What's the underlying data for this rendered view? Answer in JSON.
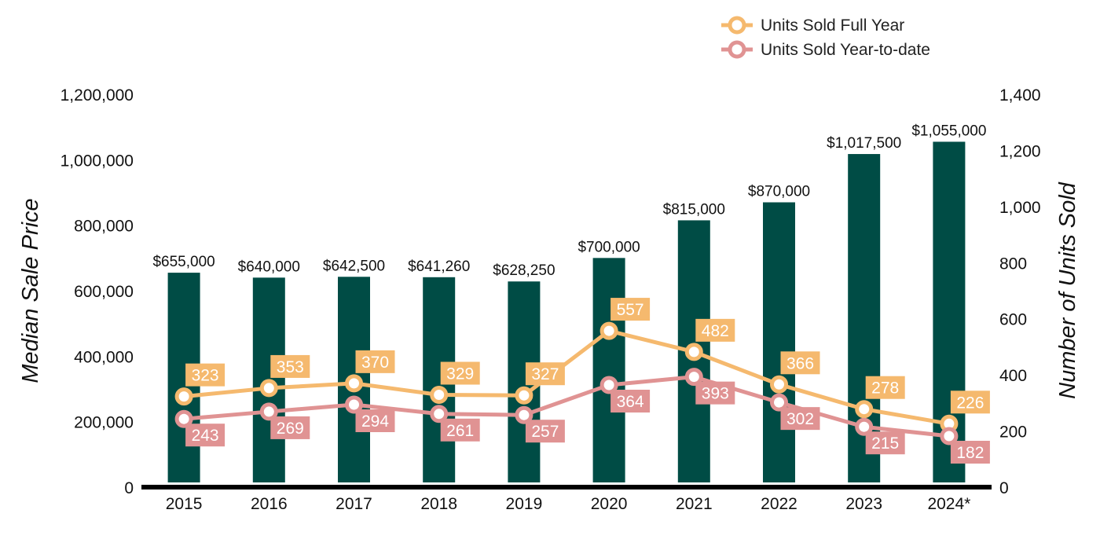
{
  "chart_data": {
    "type": "bar",
    "categories": [
      "2015",
      "2016",
      "2017",
      "2018",
      "2019",
      "2020",
      "2021",
      "2022",
      "2023",
      "2024*"
    ],
    "bar_series": {
      "values": [
        655000,
        640000,
        642500,
        641260,
        628250,
        700000,
        815000,
        870000,
        1017500,
        1055000
      ],
      "labels": [
        "$655,000",
        "$640,000",
        "$642,500",
        "$641,260",
        "$628,250",
        "$700,000",
        "$815,000",
        "$870,000",
        "$1,017,500",
        "$1,055,000"
      ],
      "color": "#004c45"
    },
    "line_series": [
      {
        "name": "Units Sold Full Year",
        "values": [
          323,
          353,
          370,
          329,
          327,
          557,
          482,
          366,
          278,
          226
        ],
        "color": "#f5b96e"
      },
      {
        "name": "Units Sold Year-to-date",
        "values": [
          243,
          269,
          294,
          261,
          257,
          364,
          393,
          302,
          215,
          182
        ],
        "color": "#e09393"
      }
    ],
    "y_left": {
      "label": "Median Sale Price",
      "range": [
        0,
        1200000
      ],
      "ticks": [
        "0",
        "200,000",
        "400,000",
        "600,000",
        "800,000",
        "1,000,000",
        "1,200,000"
      ]
    },
    "y_right": {
      "label": "Number of Units Sold",
      "range": [
        0,
        1400
      ],
      "ticks": [
        "0",
        "200",
        "400",
        "600",
        "800",
        "1,000",
        "1,200",
        "1,400"
      ]
    },
    "legend_position": "top-right",
    "grid": false
  }
}
